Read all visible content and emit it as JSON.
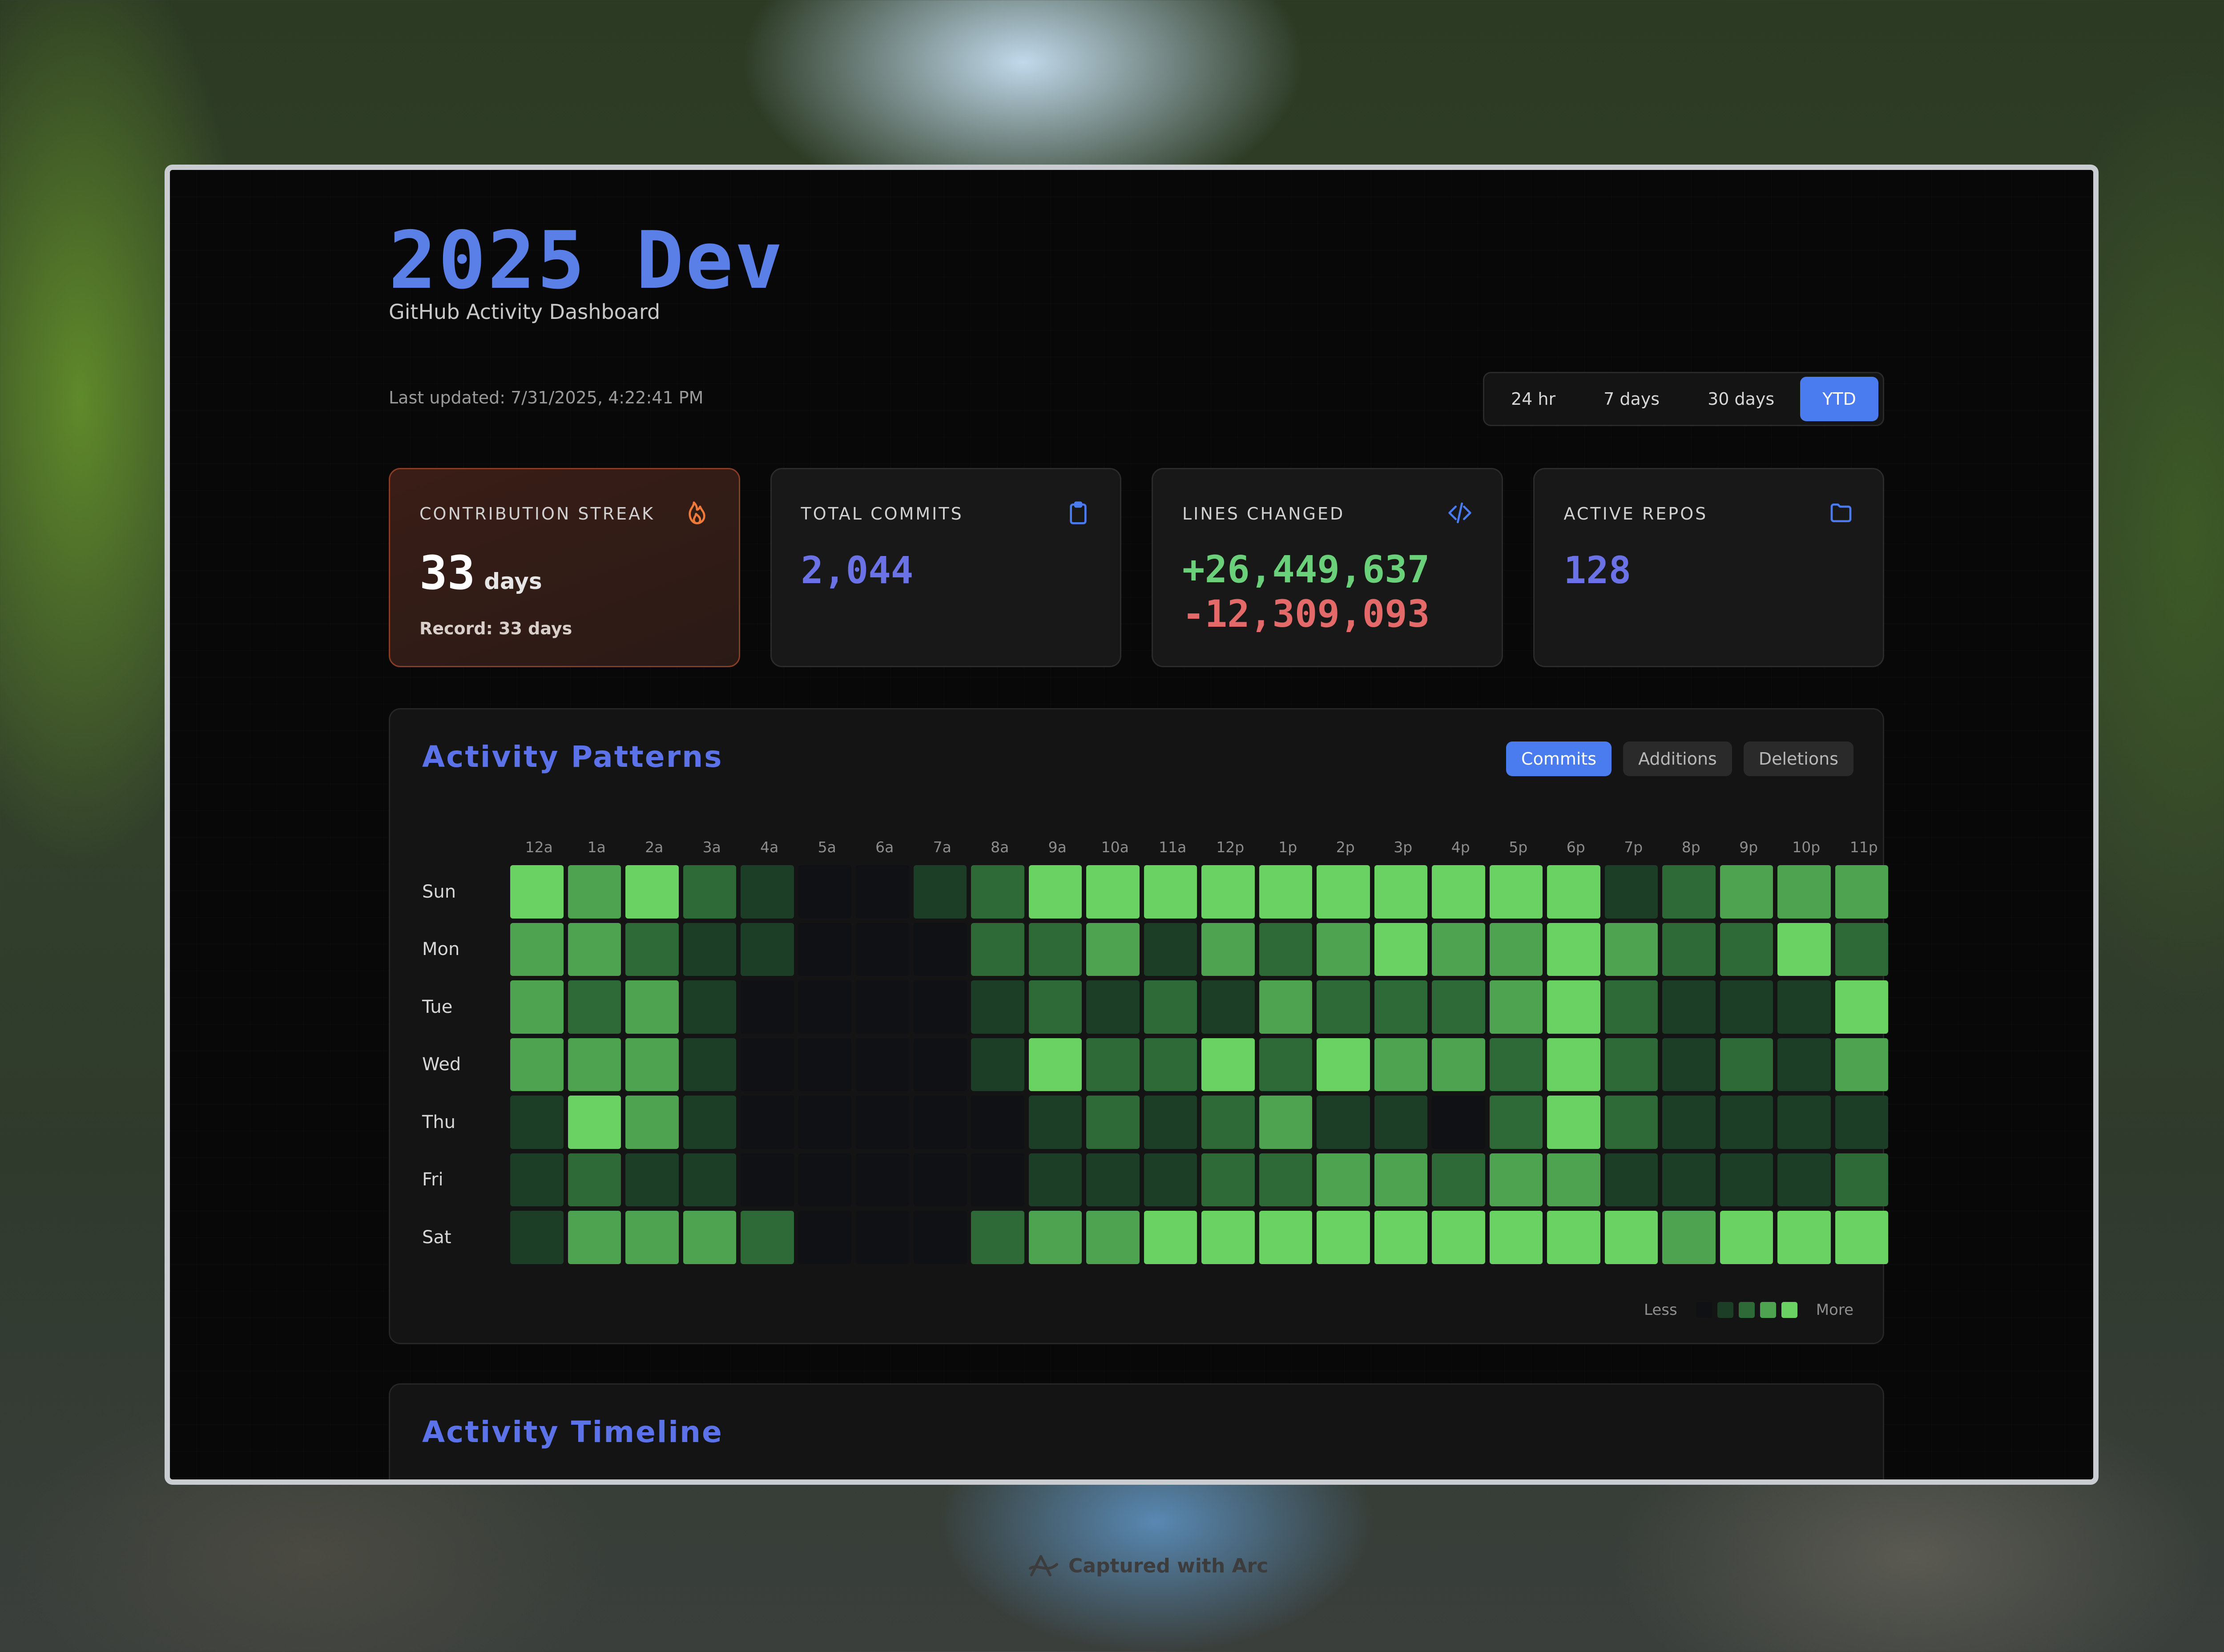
{
  "dashboard": {
    "title": "2025 Dev",
    "subtitle": "GitHub Activity Dashboard",
    "last_updated": "Last updated: 7/31/2025, 4:22:41 PM",
    "ranges": [
      {
        "label": "24 hr",
        "active": false
      },
      {
        "label": "7 days",
        "active": false
      },
      {
        "label": "30 days",
        "active": false
      },
      {
        "label": "YTD",
        "active": true
      }
    ]
  },
  "cards": {
    "streak": {
      "label": "CONTRIBUTION STREAK",
      "value": "33",
      "unit": "days",
      "record": "Record: 33 days",
      "icon": "flame-icon"
    },
    "commits": {
      "label": "TOTAL COMMITS",
      "value": "2,044",
      "icon": "clipboard-icon"
    },
    "lines": {
      "label": "LINES CHANGED",
      "added": "+26,449,637",
      "removed": "-12,309,093",
      "icon": "code-icon"
    },
    "repos": {
      "label": "ACTIVE REPOS",
      "value": "128",
      "icon": "folder-icon"
    }
  },
  "activity": {
    "title": "Activity Patterns",
    "tabs": [
      {
        "label": "Commits",
        "active": true
      },
      {
        "label": "Additions",
        "active": false
      },
      {
        "label": "Deletions",
        "active": false
      }
    ],
    "hours": [
      "12a",
      "1a",
      "2a",
      "3a",
      "4a",
      "5a",
      "6a",
      "7a",
      "8a",
      "9a",
      "10a",
      "11a",
      "12p",
      "1p",
      "2p",
      "3p",
      "4p",
      "5p",
      "6p",
      "7p",
      "8p",
      "9p",
      "10p",
      "11p"
    ],
    "days": [
      "Sun",
      "Mon",
      "Tue",
      "Wed",
      "Thu",
      "Fri",
      "Sat"
    ],
    "levels": [
      [
        4,
        3,
        4,
        2,
        1,
        0,
        0,
        1,
        2,
        4,
        4,
        4,
        4,
        4,
        4,
        4,
        4,
        4,
        4,
        1,
        2,
        3,
        3,
        3
      ],
      [
        3,
        3,
        2,
        1,
        1,
        0,
        0,
        0,
        2,
        2,
        3,
        1,
        3,
        2,
        3,
        4,
        3,
        3,
        4,
        3,
        2,
        2,
        4,
        2
      ],
      [
        3,
        2,
        3,
        1,
        0,
        0,
        0,
        0,
        1,
        2,
        1,
        2,
        1,
        3,
        2,
        2,
        2,
        3,
        4,
        2,
        1,
        1,
        1,
        4
      ],
      [
        3,
        3,
        3,
        1,
        0,
        0,
        0,
        0,
        1,
        4,
        2,
        2,
        4,
        2,
        4,
        3,
        3,
        2,
        4,
        2,
        1,
        2,
        1,
        3
      ],
      [
        1,
        4,
        3,
        1,
        0,
        0,
        0,
        0,
        0,
        1,
        2,
        1,
        2,
        3,
        1,
        1,
        0,
        2,
        4,
        2,
        1,
        1,
        1,
        1
      ],
      [
        1,
        2,
        1,
        1,
        0,
        0,
        0,
        0,
        0,
        1,
        1,
        1,
        2,
        2,
        3,
        3,
        2,
        3,
        3,
        1,
        1,
        1,
        1,
        2
      ],
      [
        1,
        3,
        3,
        3,
        2,
        0,
        0,
        0,
        2,
        3,
        3,
        4,
        4,
        4,
        4,
        4,
        4,
        4,
        4,
        4,
        3,
        4,
        4,
        4
      ]
    ],
    "level_colors": [
      "#0f1115",
      "#1c3d26",
      "#2d6a37",
      "#4da34f",
      "#6ad163"
    ],
    "legend": {
      "less": "Less",
      "more": "More"
    }
  },
  "timeline": {
    "title": "Activity Timeline"
  },
  "footer": {
    "text": "Captured with Arc"
  }
}
